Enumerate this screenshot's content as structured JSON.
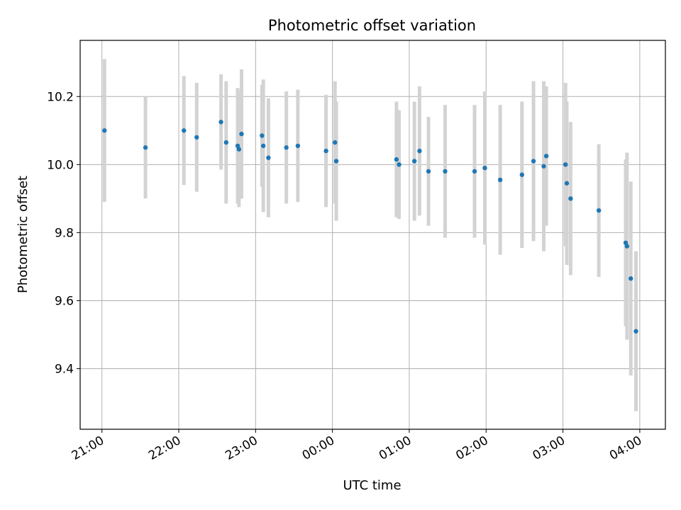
{
  "chart_data": {
    "type": "scatter",
    "title": "Photometric offset variation",
    "xlabel": "UTC time",
    "ylabel": "Photometric offset",
    "x_ticks": [
      "21:00",
      "22:00",
      "23:00",
      "00:00",
      "01:00",
      "02:00",
      "03:00",
      "04:00"
    ],
    "y_ticks": [
      "9.4",
      "9.6",
      "9.8",
      "10.0",
      "10.2"
    ],
    "y_tick_values": [
      9.4,
      9.6,
      9.8,
      10.0,
      10.2
    ],
    "xlim": [
      "20:43",
      "04:20"
    ],
    "ylim": [
      9.222,
      10.365
    ],
    "grid": true,
    "point_color": "#1f77b4",
    "errorbar_color": "#d3d3d3",
    "series": [
      {
        "points": [
          {
            "x": "21:02",
            "y": 10.1,
            "err": 0.21
          },
          {
            "x": "21:34",
            "y": 10.05,
            "err": 0.15
          },
          {
            "x": "22:04",
            "y": 10.1,
            "err": 0.16
          },
          {
            "x": "22:14",
            "y": 10.08,
            "err": 0.16
          },
          {
            "x": "22:33",
            "y": 10.125,
            "err": 0.14
          },
          {
            "x": "22:37",
            "y": 10.065,
            "err": 0.18
          },
          {
            "x": "22:46",
            "y": 10.055,
            "err": 0.17
          },
          {
            "x": "22:47",
            "y": 10.045,
            "err": 0.17
          },
          {
            "x": "22:49",
            "y": 10.09,
            "err": 0.19
          },
          {
            "x": "23:05",
            "y": 10.085,
            "err": 0.15
          },
          {
            "x": "23:06",
            "y": 10.055,
            "err": 0.195
          },
          {
            "x": "23:10",
            "y": 10.02,
            "err": 0.175
          },
          {
            "x": "23:24",
            "y": 10.05,
            "err": 0.165
          },
          {
            "x": "23:33",
            "y": 10.055,
            "err": 0.165
          },
          {
            "x": "23:55",
            "y": 10.04,
            "err": 0.165
          },
          {
            "x": "00:02",
            "y": 10.065,
            "err": 0.18
          },
          {
            "x": "00:03",
            "y": 10.01,
            "err": 0.175
          },
          {
            "x": "00:50",
            "y": 10.015,
            "err": 0.17
          },
          {
            "x": "00:52",
            "y": 10.0,
            "err": 0.16
          },
          {
            "x": "01:04",
            "y": 10.01,
            "err": 0.175
          },
          {
            "x": "01:08",
            "y": 10.04,
            "err": 0.19
          },
          {
            "x": "01:15",
            "y": 9.98,
            "err": 0.16
          },
          {
            "x": "01:28",
            "y": 9.98,
            "err": 0.195
          },
          {
            "x": "01:51",
            "y": 9.98,
            "err": 0.195
          },
          {
            "x": "01:59",
            "y": 9.99,
            "err": 0.225
          },
          {
            "x": "02:11",
            "y": 9.955,
            "err": 0.22
          },
          {
            "x": "02:28",
            "y": 9.97,
            "err": 0.215
          },
          {
            "x": "02:37",
            "y": 10.01,
            "err": 0.235
          },
          {
            "x": "02:45",
            "y": 9.995,
            "err": 0.25
          },
          {
            "x": "02:47",
            "y": 10.025,
            "err": 0.205
          },
          {
            "x": "03:02",
            "y": 10.0,
            "err": 0.24
          },
          {
            "x": "03:03",
            "y": 9.945,
            "err": 0.24
          },
          {
            "x": "03:06",
            "y": 9.9,
            "err": 0.225
          },
          {
            "x": "03:28",
            "y": 9.865,
            "err": 0.195
          },
          {
            "x": "03:49",
            "y": 9.77,
            "err": 0.245
          },
          {
            "x": "03:50",
            "y": 9.76,
            "err": 0.275
          },
          {
            "x": "03:53",
            "y": 9.665,
            "err": 0.285
          },
          {
            "x": "03:57",
            "y": 9.51,
            "err": 0.235
          }
        ]
      }
    ]
  }
}
